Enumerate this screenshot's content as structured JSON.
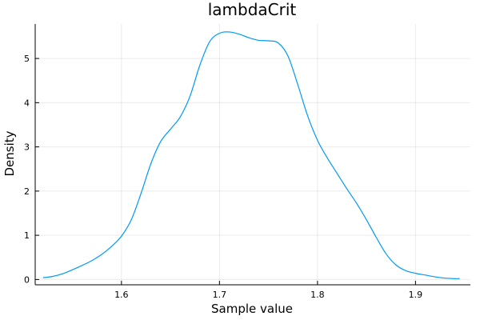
{
  "chart_data": {
    "type": "line",
    "title": "lambdaCrit",
    "xlabel": "Sample value",
    "ylabel": "Density",
    "xlim": [
      1.512,
      1.956
    ],
    "ylim": [
      -0.12,
      5.78
    ],
    "x_ticks": [
      1.6,
      1.7,
      1.8,
      1.9
    ],
    "x_tick_labels": [
      "1.6",
      "1.7",
      "1.8",
      "1.9"
    ],
    "y_ticks": [
      0,
      1,
      2,
      3,
      4,
      5
    ],
    "y_tick_labels": [
      "0",
      "1",
      "2",
      "3",
      "4",
      "5"
    ],
    "grid": true,
    "legend": "none",
    "series": [
      {
        "color": "#009AFA",
        "x": [
          1.52,
          1.53,
          1.54,
          1.55,
          1.56,
          1.57,
          1.58,
          1.59,
          1.6,
          1.61,
          1.62,
          1.63,
          1.64,
          1.65,
          1.66,
          1.67,
          1.68,
          1.69,
          1.7,
          1.71,
          1.72,
          1.73,
          1.74,
          1.75,
          1.76,
          1.77,
          1.78,
          1.79,
          1.8,
          1.81,
          1.82,
          1.83,
          1.84,
          1.85,
          1.86,
          1.87,
          1.88,
          1.89,
          1.9,
          1.91,
          1.92,
          1.93,
          1.94,
          1.945
        ],
        "y": [
          0.04,
          0.07,
          0.13,
          0.22,
          0.32,
          0.43,
          0.57,
          0.75,
          0.98,
          1.35,
          1.95,
          2.62,
          3.12,
          3.4,
          3.68,
          4.15,
          4.85,
          5.38,
          5.57,
          5.6,
          5.55,
          5.47,
          5.41,
          5.4,
          5.35,
          5.05,
          4.4,
          3.7,
          3.15,
          2.75,
          2.4,
          2.05,
          1.72,
          1.35,
          0.95,
          0.58,
          0.33,
          0.2,
          0.14,
          0.1,
          0.06,
          0.03,
          0.02,
          0.02
        ]
      }
    ]
  }
}
